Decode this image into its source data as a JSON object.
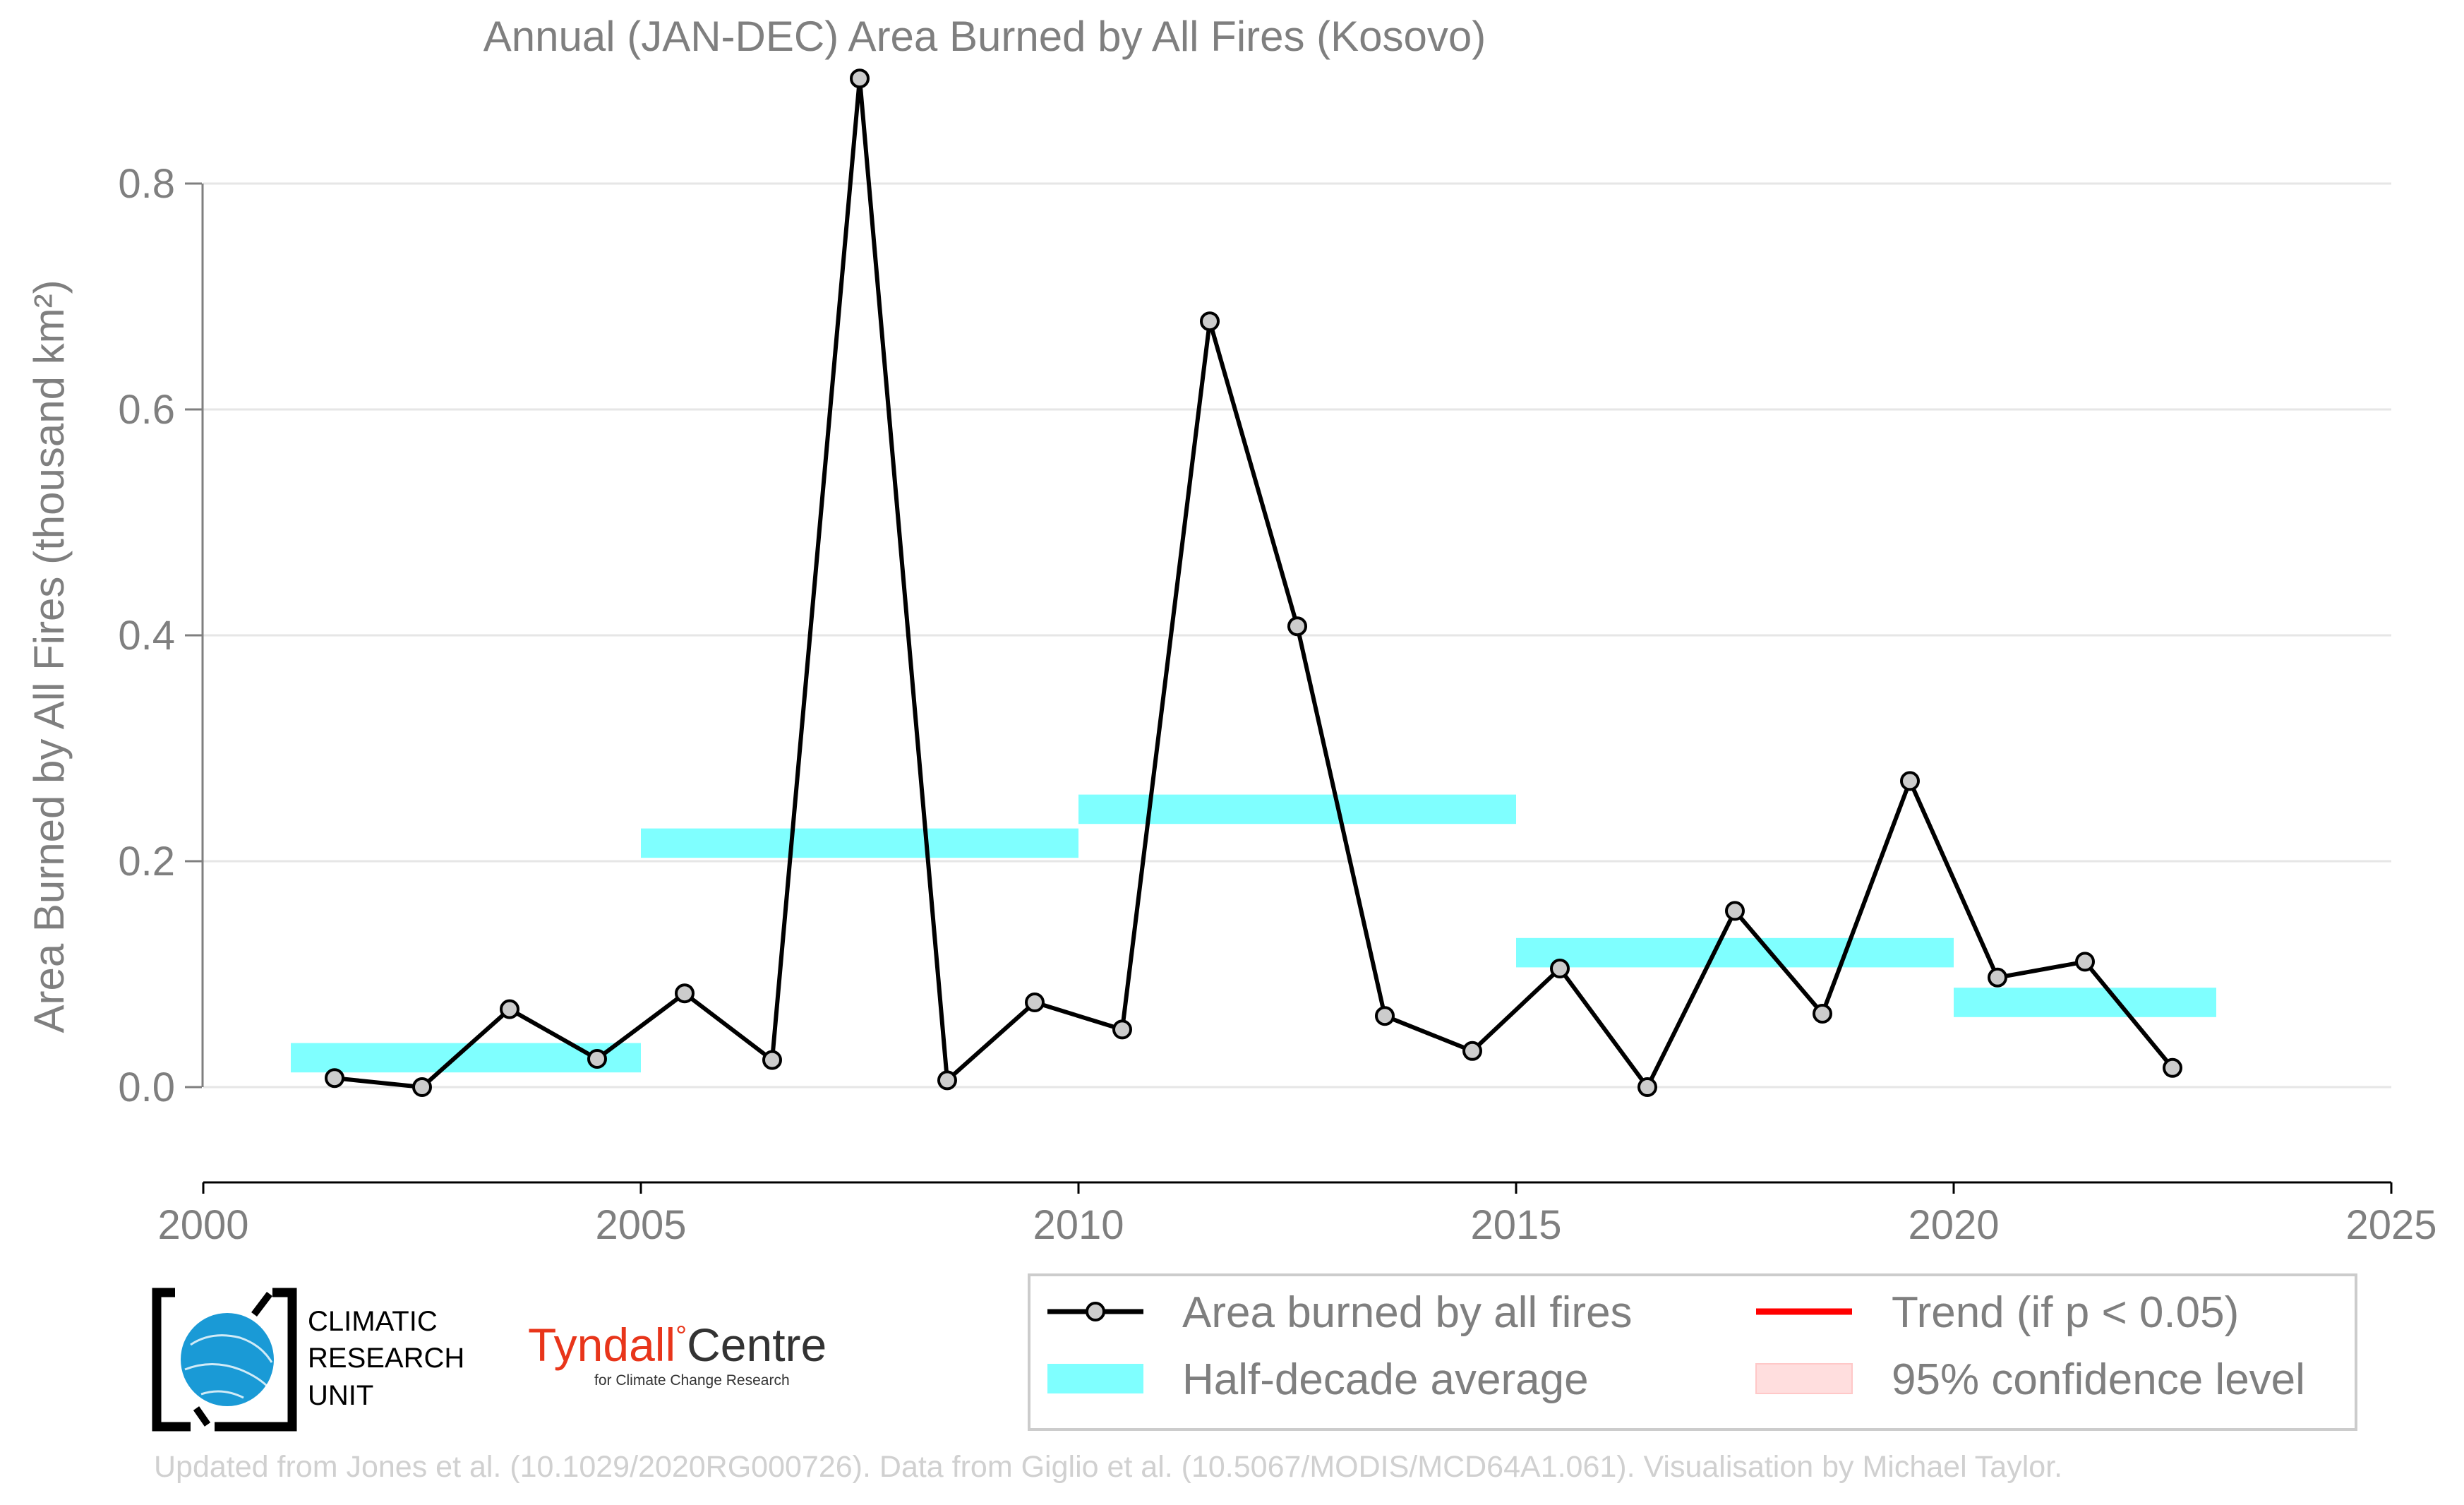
{
  "chart_data": {
    "type": "line",
    "title": "Annual (JAN-DEC) Area Burned by All Fires (Kosovo)",
    "ylabel": "Area Burned by All Fires (thousand km²)",
    "xlabel": "",
    "xlim": [
      2000,
      2025
    ],
    "ylim": [
      -0.075,
      0.925
    ],
    "x_ticks": [
      2000,
      2005,
      2010,
      2015,
      2020,
      2025
    ],
    "y_ticks": [
      0.0,
      0.2,
      0.4,
      0.6,
      0.8
    ],
    "y_tick_labels": [
      "0.0",
      "0.2",
      "0.4",
      "0.6",
      "0.8"
    ],
    "grid": "horizontal",
    "series": [
      {
        "name": "Area burned by all fires",
        "color": "#000000",
        "marker_fill": "#cccccc",
        "x": [
          2001.5,
          2002.5,
          2003.5,
          2004.5,
          2005.5,
          2006.5,
          2007.5,
          2008.5,
          2009.5,
          2010.5,
          2011.5,
          2012.5,
          2013.5,
          2014.5,
          2015.5,
          2016.5,
          2017.5,
          2018.5,
          2019.5,
          2020.5,
          2021.5,
          2022.5
        ],
        "y": [
          0.008,
          0.0,
          0.069,
          0.025,
          0.083,
          0.024,
          0.893,
          0.006,
          0.075,
          0.051,
          0.678,
          0.408,
          0.063,
          0.032,
          0.105,
          0.0,
          0.156,
          0.065,
          0.271,
          0.097,
          0.111,
          0.017
        ]
      }
    ],
    "half_decade_average": {
      "name": "Half-decade average",
      "color": "#7fffff",
      "segments": [
        {
          "x0": 2001,
          "x1": 2005,
          "y": 0.026
        },
        {
          "x0": 2005,
          "x1": 2010,
          "y": 0.216
        },
        {
          "x0": 2010,
          "x1": 2015,
          "y": 0.246
        },
        {
          "x0": 2015,
          "x1": 2020,
          "y": 0.119
        },
        {
          "x0": 2020,
          "x1": 2023,
          "y": 0.075
        }
      ],
      "band_half_height": 0.013
    },
    "legend": {
      "placement": "bottom-right",
      "entries": [
        {
          "label": "Area burned by all fires",
          "kind": "line-marker",
          "color": "#000000"
        },
        {
          "label": "Trend (if p < 0.05)",
          "kind": "line",
          "color": "#ff0000"
        },
        {
          "label": "Half-decade average",
          "kind": "band",
          "color": "#7fffff"
        },
        {
          "label": "95% confidence level",
          "kind": "band",
          "color": "#ffdede"
        }
      ]
    }
  },
  "logos": {
    "cru_line1": "CLIMATIC",
    "cru_line2": "RESEARCH",
    "cru_line3": "UNIT",
    "tyndall_name": "Tyndall",
    "tyndall_degree": "°",
    "tyndall_centre": "Centre",
    "tyndall_sub": "for Climate Change Research"
  },
  "footer": "Updated from Jones et al. (10.1029/2020RG000726). Data from Giglio et al. (10.5067/MODIS/MCD64A1.061). Visualisation by Michael Taylor."
}
